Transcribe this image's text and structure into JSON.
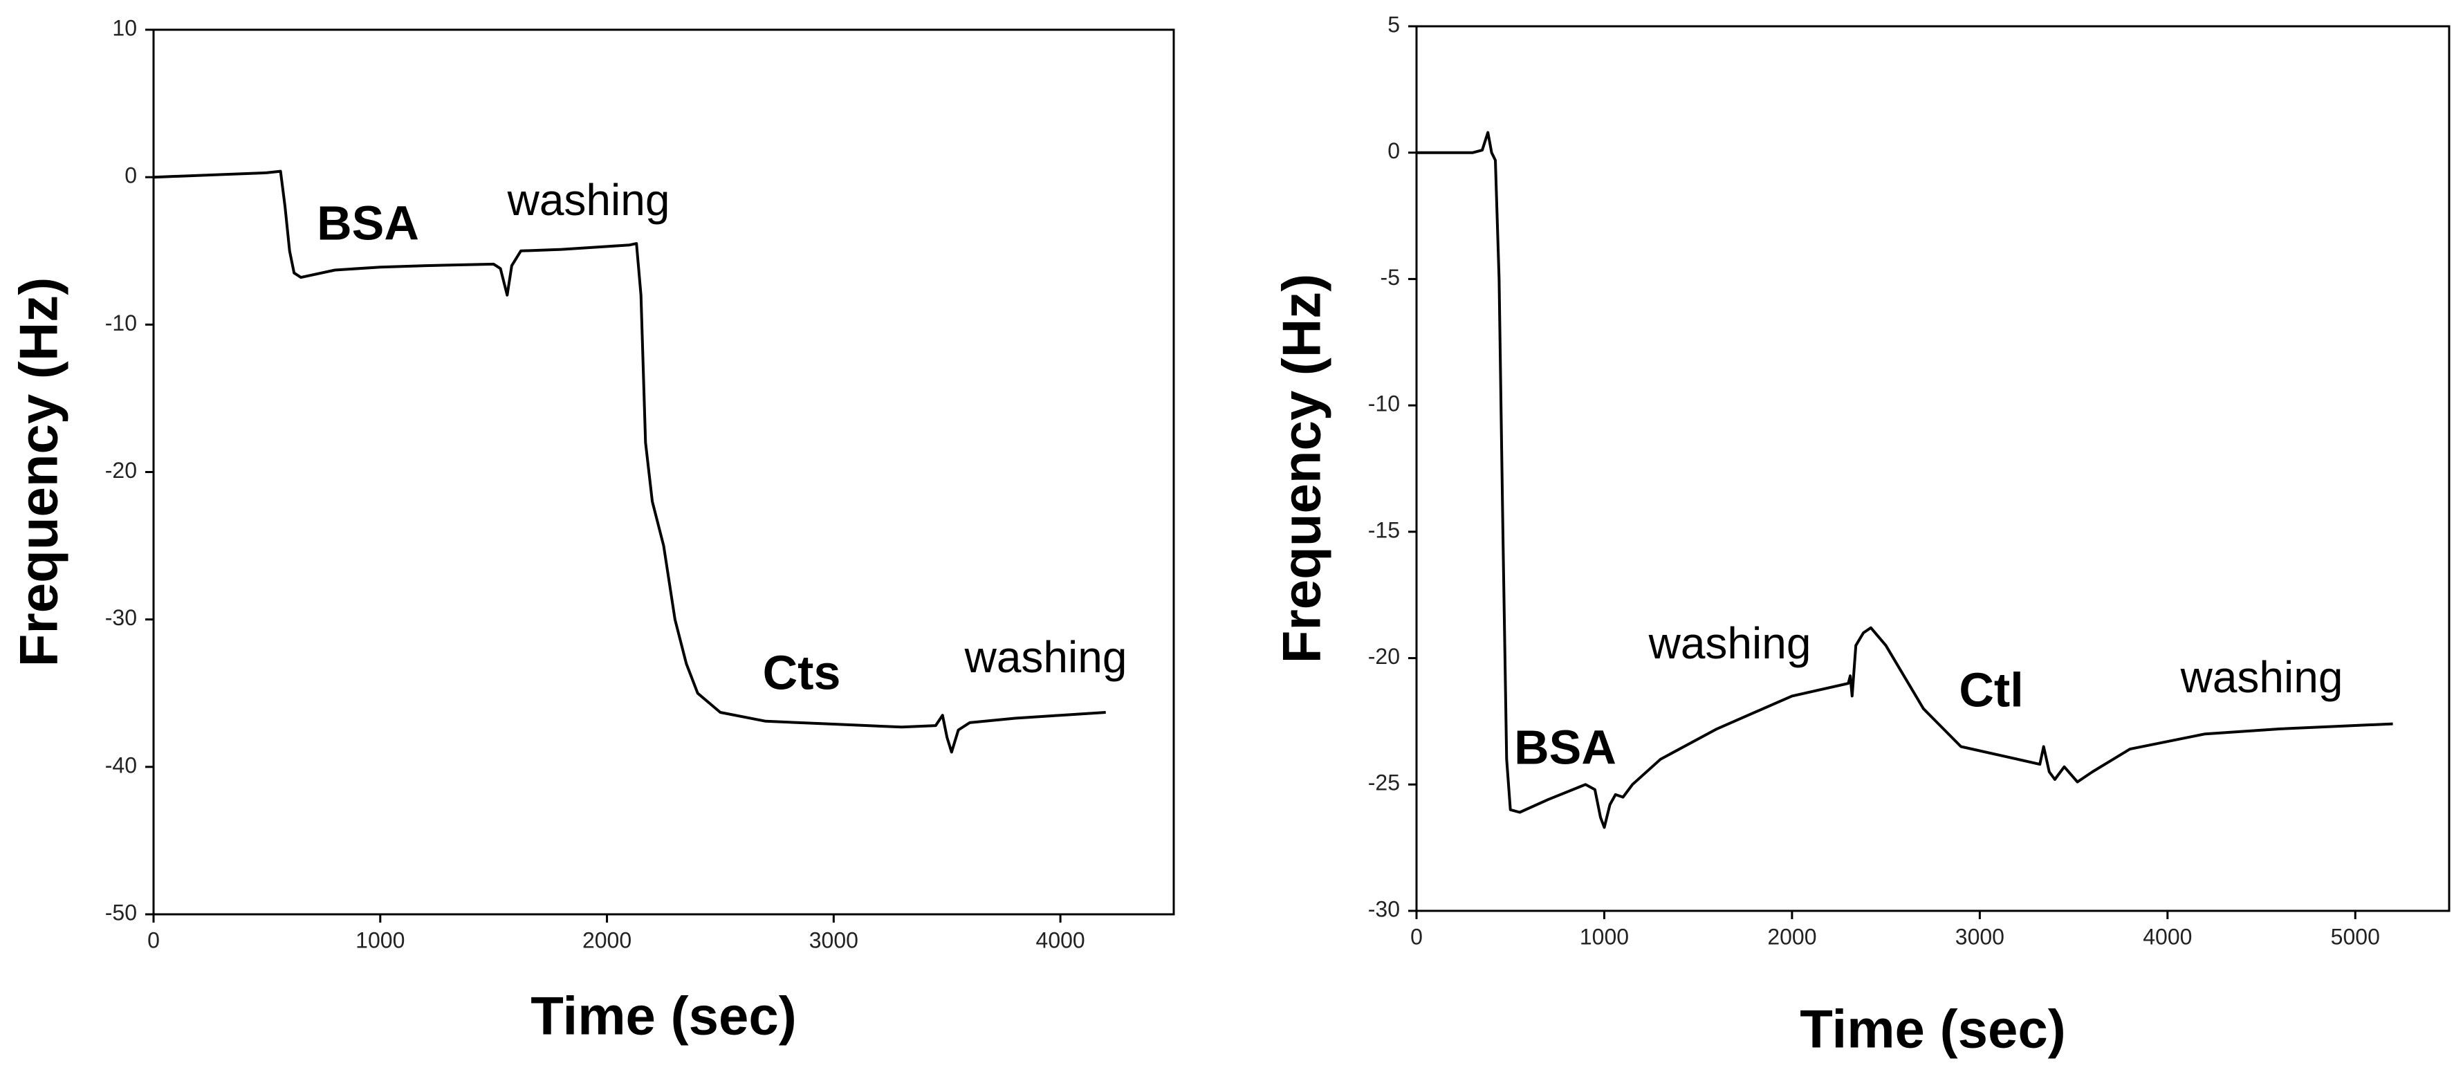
{
  "chart_data": [
    {
      "type": "line",
      "x_label": "Time (sec)",
      "y_label": "Frequency (Hz)",
      "color": "#000000",
      "xlim": [
        0,
        4500
      ],
      "xticks": [
        0,
        1000,
        2000,
        3000,
        4000
      ],
      "ylim": [
        -50,
        10
      ],
      "yticks": [
        -50,
        -40,
        -30,
        -20,
        -10,
        0,
        10
      ],
      "annotations": [
        "BSA",
        "washing",
        "Cts",
        "washing"
      ],
      "x": [
        0,
        500,
        560,
        580,
        600,
        620,
        650,
        800,
        1000,
        1200,
        1500,
        1530,
        1560,
        1580,
        1620,
        1800,
        2000,
        2100,
        2130,
        2150,
        2170,
        2200,
        2250,
        2300,
        2350,
        2400,
        2500,
        2700,
        3000,
        3300,
        3450,
        3480,
        3500,
        3520,
        3550,
        3600,
        3800,
        4000,
        4200
      ],
      "values": [
        0,
        0.3,
        0.4,
        -2,
        -5,
        -6.5,
        -6.8,
        -6.3,
        -6.1,
        -6,
        -5.9,
        -6.2,
        -8,
        -6,
        -5,
        -4.9,
        -4.7,
        -4.6,
        -4.5,
        -8,
        -18,
        -22,
        -25,
        -30,
        -33,
        -35,
        -36.3,
        -36.9,
        -37.1,
        -37.3,
        -37.2,
        -36.5,
        -38,
        -39,
        -37.5,
        -37,
        -36.7,
        -36.5,
        -36.3
      ]
    },
    {
      "type": "line",
      "x_label": "Time (sec)",
      "y_label": "Frequency (Hz)",
      "color": "#000000",
      "xlim": [
        0,
        5500
      ],
      "xticks": [
        0,
        1000,
        2000,
        3000,
        4000,
        5000
      ],
      "ylim": [
        -30,
        5
      ],
      "yticks": [
        -30,
        -25,
        -20,
        -15,
        -10,
        -5,
        0,
        5
      ],
      "annotations": [
        "BSA",
        "washing",
        "Ctl",
        "washing"
      ],
      "x": [
        0,
        300,
        350,
        380,
        400,
        420,
        440,
        460,
        480,
        500,
        550,
        700,
        900,
        950,
        980,
        1000,
        1030,
        1060,
        1100,
        1150,
        1300,
        1600,
        2000,
        2300,
        2310,
        2320,
        2340,
        2380,
        2420,
        2500,
        2700,
        2900,
        3200,
        3320,
        3340,
        3370,
        3400,
        3450,
        3520,
        3600,
        3800,
        4200,
        4600,
        5200
      ],
      "values": [
        0,
        0,
        0.1,
        0.8,
        0,
        -0.3,
        -5,
        -15,
        -24,
        -26,
        -26.1,
        -25.6,
        -25,
        -25.2,
        -26.3,
        -26.7,
        -25.8,
        -25.4,
        -25.5,
        -25,
        -24,
        -22.8,
        -21.5,
        -21,
        -20.7,
        -21.5,
        -19.5,
        -19,
        -18.8,
        -19.5,
        -22,
        -23.5,
        -24,
        -24.2,
        -23.5,
        -24.5,
        -24.8,
        -24.3,
        -24.9,
        -24.5,
        -23.6,
        -23,
        -22.8,
        -22.6
      ]
    }
  ]
}
